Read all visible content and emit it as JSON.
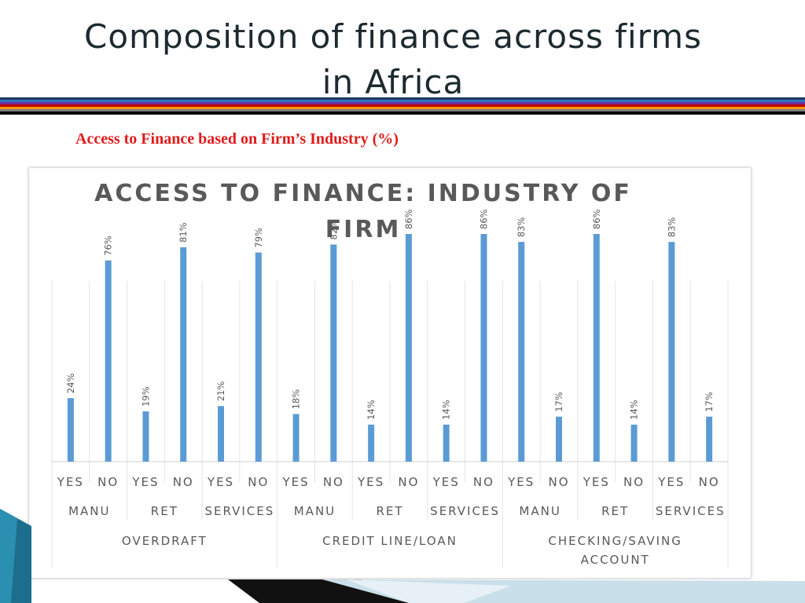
{
  "slide": {
    "title_line1": "Composition of finance across firms",
    "title_line2": "in Africa",
    "subtitle": "Access to Finance based on Firm’s Industry (%)"
  },
  "colors": {
    "bar": "#5b9bd5",
    "title_text": "#1d2a30",
    "subtitle_text": "#e01b1b",
    "axis_text": "#595959",
    "stripes": [
      "#1f3864",
      "#2e75b6",
      "#7030a0",
      "#c00000",
      "#ff9900",
      "#7f7f7f",
      "#000000"
    ]
  },
  "chart_data": {
    "type": "bar",
    "title": "ACCESS TO FINANCE: INDUSTRY OF FIRM",
    "title_lines": [
      "ACCESS TO FINANCE: INDUSTRY OF",
      "FIRM"
    ],
    "xlabel": "",
    "ylabel": "",
    "ylim": [
      0,
      100
    ],
    "grid": false,
    "legend": "none",
    "categories": [
      "YES",
      "NO",
      "YES",
      "NO",
      "YES",
      "NO",
      "YES",
      "NO",
      "YES",
      "NO",
      "YES",
      "NO",
      "YES",
      "NO",
      "YES",
      "NO",
      "YES",
      "NO"
    ],
    "values": [
      24,
      76,
      19,
      81,
      21,
      79,
      18,
      82,
      14,
      86,
      14,
      86,
      83,
      17,
      86,
      14,
      83,
      17
    ],
    "data_labels": [
      "24%",
      "76%",
      "19%",
      "81%",
      "21%",
      "79%",
      "18%",
      "82%",
      "14%",
      "86%",
      "14%",
      "86%",
      "83%",
      "17%",
      "86%",
      "14%",
      "83%",
      "17%"
    ],
    "industries": [
      "MANU",
      "RET",
      "SERVICES",
      "MANU",
      "RET",
      "SERVICES",
      "MANU",
      "RET",
      "SERVICES"
    ],
    "finance_types": [
      {
        "lines": [
          "OVERDRAFT"
        ]
      },
      {
        "lines": [
          "CREDIT LINE/LOAN"
        ]
      },
      {
        "lines": [
          "CHECKING/SAVING",
          "ACCOUNT"
        ]
      }
    ]
  }
}
